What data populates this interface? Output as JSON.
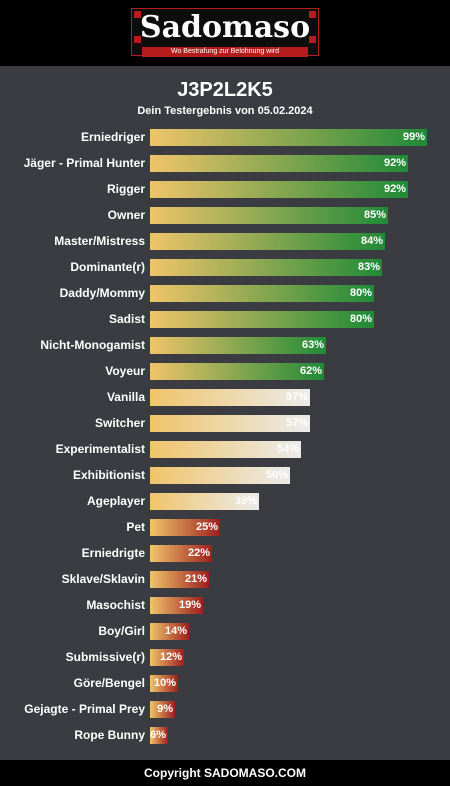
{
  "header": {
    "logo_title": "Sadomaso",
    "logo_tagline": "Wo Bestrafung zur Belohnung wird"
  },
  "result": {
    "title": "J3P2L2K5",
    "subtitle": "Dein Testergebnis von 05.02.2024"
  },
  "colors": {
    "bar_start": "#f0c46a",
    "high_end": "#1f8a37",
    "mid_end": "#ebebeb",
    "low_end": "#9e1f1f"
  },
  "rows": [
    {
      "label": "Erniedriger",
      "value": 99,
      "value_label": "99%",
      "tier": "high"
    },
    {
      "label": "Jäger - Primal Hunter",
      "value": 92,
      "value_label": "92%",
      "tier": "high"
    },
    {
      "label": "Rigger",
      "value": 92,
      "value_label": "92%",
      "tier": "high"
    },
    {
      "label": "Owner",
      "value": 85,
      "value_label": "85%",
      "tier": "high"
    },
    {
      "label": "Master/Mistress",
      "value": 84,
      "value_label": "84%",
      "tier": "high"
    },
    {
      "label": "Dominante(r)",
      "value": 83,
      "value_label": "83%",
      "tier": "high"
    },
    {
      "label": "Daddy/Mommy",
      "value": 80,
      "value_label": "80%",
      "tier": "high"
    },
    {
      "label": "Sadist",
      "value": 80,
      "value_label": "80%",
      "tier": "high"
    },
    {
      "label": "Nicht-Monogamist",
      "value": 63,
      "value_label": "63%",
      "tier": "high"
    },
    {
      "label": "Voyeur",
      "value": 62,
      "value_label": "62%",
      "tier": "high"
    },
    {
      "label": "Vanilla",
      "value": 57,
      "value_label": "57%",
      "tier": "mid"
    },
    {
      "label": "Switcher",
      "value": 57,
      "value_label": "57%",
      "tier": "mid"
    },
    {
      "label": "Experimentalist",
      "value": 54,
      "value_label": "54%",
      "tier": "mid"
    },
    {
      "label": "Exhibitionist",
      "value": 50,
      "value_label": "50%",
      "tier": "mid"
    },
    {
      "label": "Ageplayer",
      "value": 39,
      "value_label": "39%",
      "tier": "mid"
    },
    {
      "label": "Pet",
      "value": 25,
      "value_label": "25%",
      "tier": "low"
    },
    {
      "label": "Erniedrigte",
      "value": 22,
      "value_label": "22%",
      "tier": "low"
    },
    {
      "label": "Sklave/Sklavin",
      "value": 21,
      "value_label": "21%",
      "tier": "low"
    },
    {
      "label": "Masochist",
      "value": 19,
      "value_label": "19%",
      "tier": "low"
    },
    {
      "label": "Boy/Girl",
      "value": 14,
      "value_label": "14%",
      "tier": "low"
    },
    {
      "label": "Submissive(r)",
      "value": 12,
      "value_label": "12%",
      "tier": "low"
    },
    {
      "label": "Göre/Bengel",
      "value": 10,
      "value_label": "10%",
      "tier": "low"
    },
    {
      "label": "Gejagte - Primal Prey",
      "value": 9,
      "value_label": "9%",
      "tier": "low"
    },
    {
      "label": "Rope Bunny",
      "value": 6,
      "value_label": "6%",
      "tier": "low"
    }
  ],
  "footer": {
    "copyright": "Copyright SADOMASO.COM"
  }
}
